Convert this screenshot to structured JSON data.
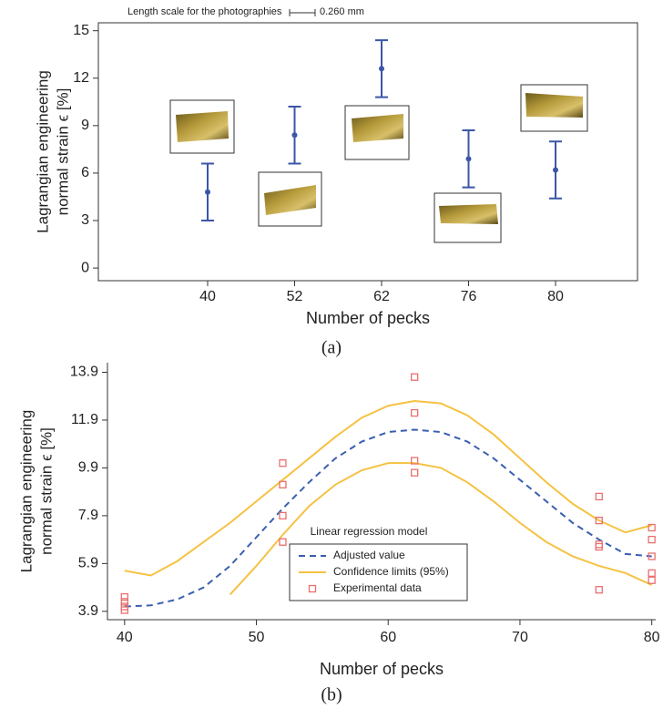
{
  "chart_data": [
    {
      "type": "errorbar",
      "title": "Length scale for the photographies",
      "scale_label": "0.260 mm",
      "caption": "(a)",
      "xlabel": "Number of pecks",
      "ylabel": [
        "Lagrangian engineering",
        "normal strain ϵ [%]"
      ],
      "categories": [
        40,
        52,
        62,
        76,
        80
      ],
      "values": [
        4.8,
        8.4,
        12.6,
        6.9,
        6.2
      ],
      "errors": [
        1.8,
        1.8,
        1.8,
        1.8,
        1.8
      ],
      "color": "#3b56a8",
      "ylim": [
        -0.8,
        15.5
      ],
      "yticks": [
        0,
        3,
        6,
        9,
        12,
        15
      ]
    },
    {
      "type": "line",
      "caption": "(b)",
      "xlabel": "Number of pecks",
      "ylabel": [
        "Lagrangian engineering",
        "normal strain ϵ [%]"
      ],
      "legend_title": "Linear regression model",
      "xlim": [
        38.7,
        80.3
      ],
      "ylim": [
        3.55,
        14.3
      ],
      "xticks": [
        40,
        50,
        60,
        70,
        80
      ],
      "yticks": [
        3.9,
        5.9,
        7.9,
        9.9,
        11.9,
        13.9
      ],
      "x": [
        40,
        42,
        44,
        46,
        48,
        50,
        52,
        54,
        56,
        58,
        60,
        62,
        64,
        66,
        68,
        70,
        72,
        74,
        76,
        78,
        80
      ],
      "series": [
        {
          "name": "Adjusted value",
          "color": "#3a5fb0",
          "kind": "line",
          "dash": true,
          "values": [
            4.1,
            4.15,
            4.4,
            4.9,
            5.8,
            7.0,
            8.2,
            9.3,
            10.3,
            11.0,
            11.4,
            11.5,
            11.4,
            11.0,
            10.3,
            9.4,
            8.5,
            7.6,
            6.9,
            6.3,
            6.2
          ]
        },
        {
          "name": "Confidence limits (95%)",
          "color": "#f5c242",
          "kind": "line",
          "dash": false,
          "values": [
            5.6,
            5.4,
            6.0,
            6.8,
            7.6,
            8.5,
            9.4,
            10.3,
            11.2,
            12.0,
            12.5,
            12.7,
            12.6,
            12.1,
            11.3,
            10.3,
            9.3,
            8.4,
            7.7,
            7.2,
            7.5
          ]
        },
        {
          "color": "#f5c242",
          "kind": "line",
          "dash": false,
          "values": [
            null,
            null,
            null,
            null,
            4.6,
            5.8,
            7.1,
            8.3,
            9.2,
            9.8,
            10.1,
            10.1,
            9.9,
            9.3,
            8.5,
            7.6,
            6.8,
            6.2,
            5.8,
            5.5,
            5.0
          ]
        },
        {
          "name": "Experimental data",
          "color": "#e8706f",
          "kind": "scatter",
          "x": [
            40,
            40,
            40,
            40,
            52,
            52,
            52,
            52,
            62,
            62,
            62,
            62,
            76,
            76,
            76,
            76,
            76,
            80,
            80,
            80,
            80,
            80
          ],
          "values": [
            4.5,
            4.3,
            4.1,
            3.95,
            10.1,
            9.2,
            7.9,
            6.8,
            13.7,
            12.2,
            10.2,
            9.7,
            8.7,
            7.7,
            6.7,
            6.6,
            4.8,
            7.4,
            6.9,
            6.2,
            5.5,
            5.2
          ]
        }
      ]
    }
  ]
}
